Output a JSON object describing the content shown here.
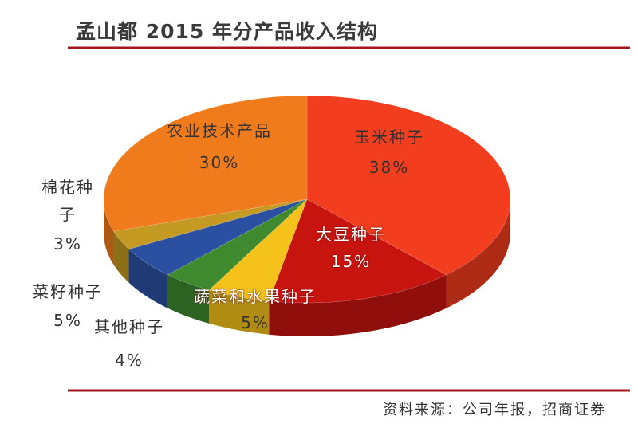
{
  "chart_data": {
    "type": "pie3d",
    "title": "孟山都 2015 年分产品收入结构",
    "source": "资料来源：公司年报，招商证券",
    "categories": [
      "玉米种子",
      "大豆种子",
      "蔬菜和水果种子",
      "其他种子",
      "菜籽种子",
      "棉花种子",
      "农业技术产品"
    ],
    "values": [
      38,
      15,
      5,
      4,
      5,
      3,
      30
    ],
    "value_labels": [
      "38%",
      "15%",
      "5%",
      "4%",
      "5%",
      "3%",
      "30%"
    ],
    "colors": [
      "#f23d1f",
      "#c8140f",
      "#f4c21a",
      "#3f8a2f",
      "#2b50a2",
      "#c49a22",
      "#f07b1c"
    ]
  }
}
